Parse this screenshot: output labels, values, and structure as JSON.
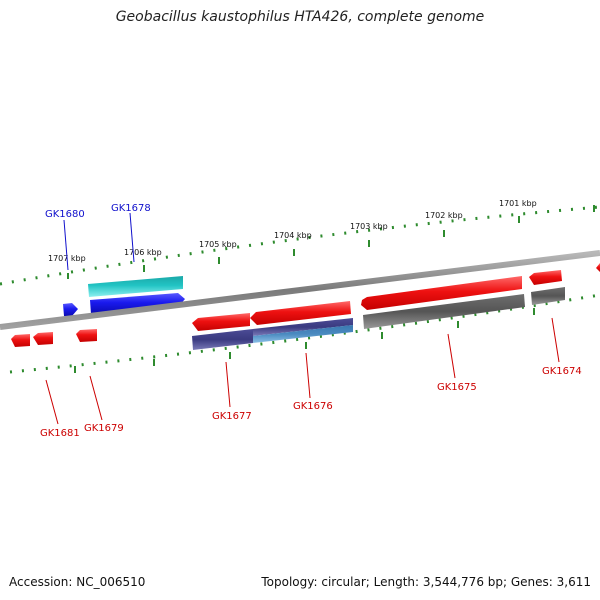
{
  "title": "Geobacillus kaustophilus HTA426, complete genome",
  "accession": "Accession: NC_006510",
  "summary": "Topology: circular; Length: 3,544,776 bp; Genes: 3,611",
  "colors": {
    "backbone": "#8a8a8a",
    "ticks": "#2e8b2e",
    "strand_plus_label": "#1010cc",
    "strand_minus_label": "#cc0000",
    "gene_red": "#ee1111",
    "gene_blue": "#1a1aee",
    "gene_cyan": "#22c4c4",
    "gene_gray": "#5c5c5c",
    "gene_navy": "#3a3a80",
    "gene_steel": "#4a8ac0"
  },
  "tick_labels": [
    {
      "id": "1707",
      "text": "1707 kbp"
    },
    {
      "id": "1706",
      "text": "1706 kbp"
    },
    {
      "id": "1705",
      "text": "1705 kbp"
    },
    {
      "id": "1704",
      "text": "1704 kbp"
    },
    {
      "id": "1703",
      "text": "1703 kbp"
    },
    {
      "id": "1702",
      "text": "1702 kbp"
    },
    {
      "id": "1701",
      "text": "1701 kbp"
    }
  ],
  "genes": [
    {
      "id": "GK1680",
      "label": "GK1680",
      "strand": "plus"
    },
    {
      "id": "GK1678",
      "label": "GK1678",
      "strand": "plus"
    },
    {
      "id": "GK1681",
      "label": "GK1681",
      "strand": "minus"
    },
    {
      "id": "GK1679",
      "label": "GK1679",
      "strand": "minus"
    },
    {
      "id": "GK1677",
      "label": "GK1677",
      "strand": "minus"
    },
    {
      "id": "GK1676",
      "label": "GK1676",
      "strand": "minus"
    },
    {
      "id": "GK1675",
      "label": "GK1675",
      "strand": "minus"
    },
    {
      "id": "GK1674",
      "label": "GK1674",
      "strand": "minus"
    }
  ]
}
